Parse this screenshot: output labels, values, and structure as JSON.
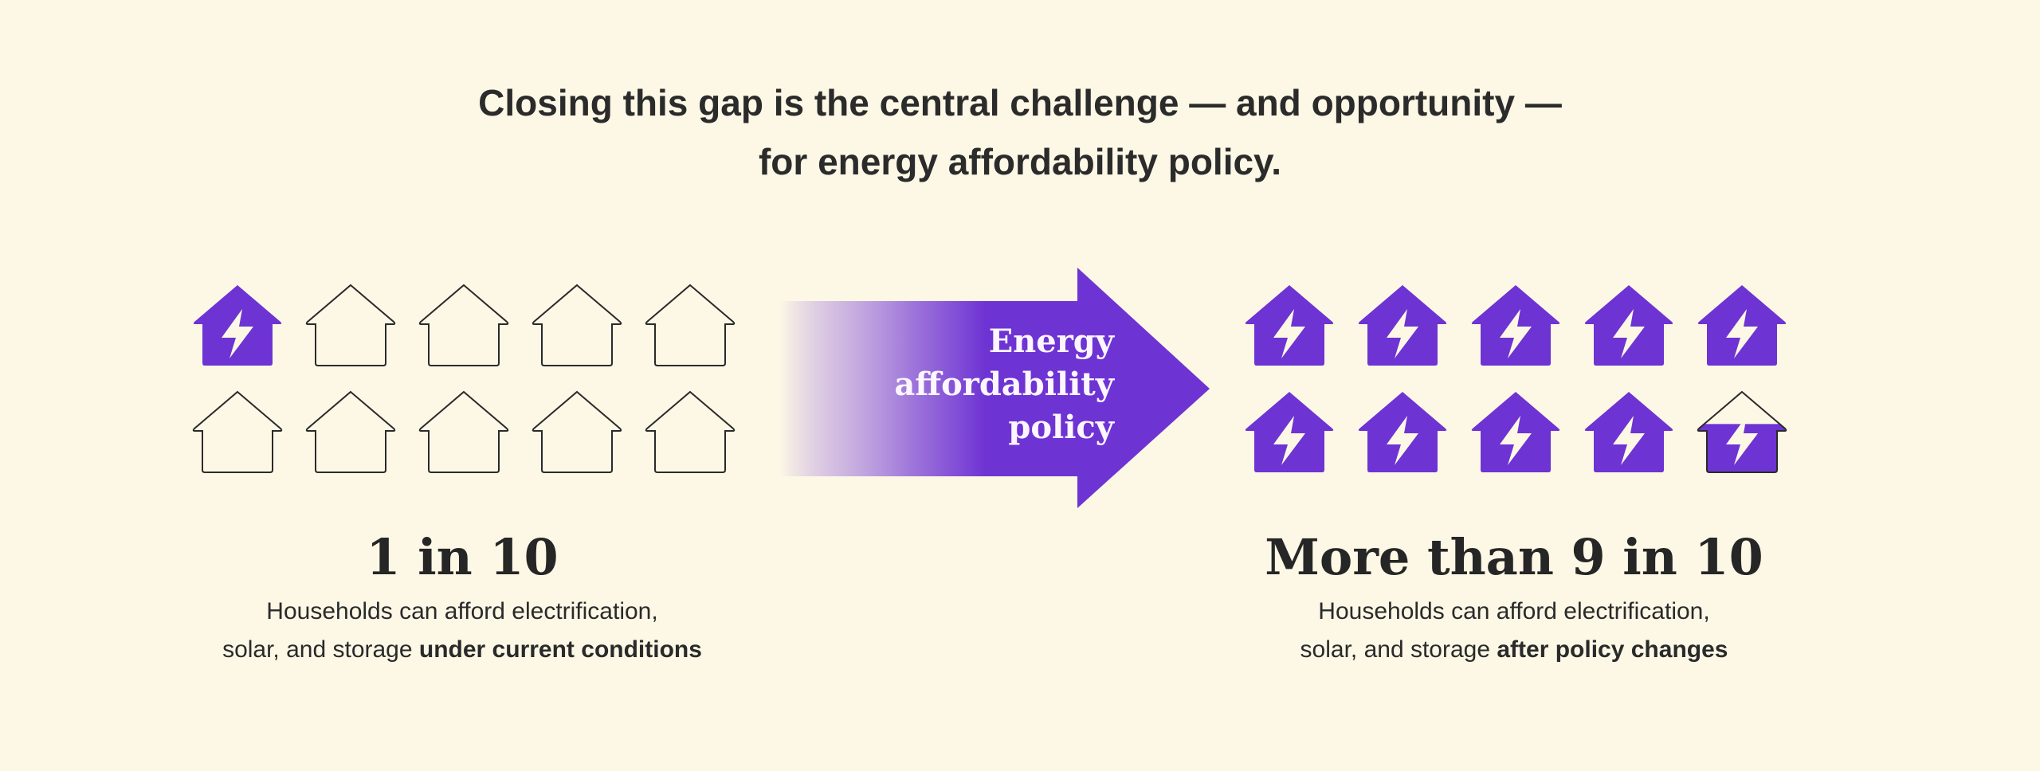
{
  "headline": {
    "line1": "Closing this gap is the central challenge — and opportunity —",
    "line2": "for energy affordability policy."
  },
  "colors": {
    "background": "#fdf8e6",
    "purple": "#6e33d3",
    "text": "#2a2a2a",
    "outline": "#2a2a2a"
  },
  "left_group": {
    "icons": [
      "filled",
      "outline",
      "outline",
      "outline",
      "outline",
      "outline",
      "outline",
      "outline",
      "outline",
      "outline"
    ],
    "stat": "1 in 10",
    "desc_line1": "Households can afford electrification,",
    "desc_line2_prefix": "solar, and storage ",
    "desc_line2_bold": "under current conditions"
  },
  "arrow": {
    "line1": "Energy",
    "line2": "affordability",
    "line3": "policy"
  },
  "right_group": {
    "icons": [
      "filled",
      "filled",
      "filled",
      "filled",
      "filled",
      "filled",
      "filled",
      "filled",
      "filled",
      "partial"
    ],
    "partial_fill_fraction": 0.6,
    "stat": "More than 9 in 10",
    "desc_line1": "Households can afford electrification,",
    "desc_line2_prefix": "solar, and storage ",
    "desc_line2_bold": "after policy changes"
  }
}
